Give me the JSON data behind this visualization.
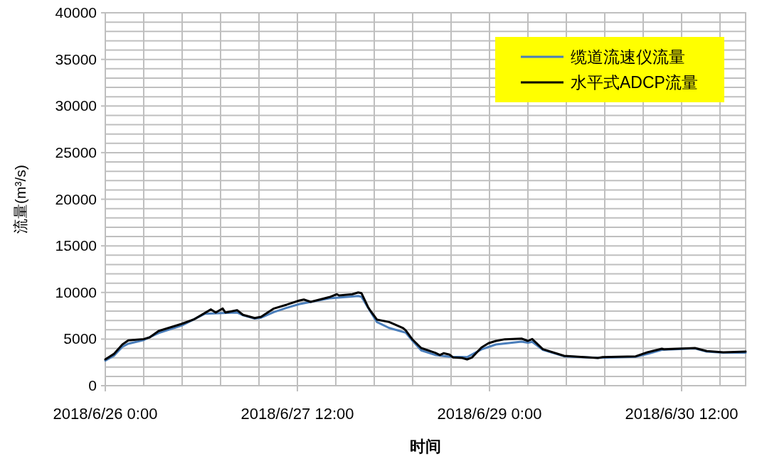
{
  "chart_data": {
    "type": "line",
    "xlabel": "时间",
    "ylabel": "流量(m³/s)",
    "legend": "top right",
    "grid": true,
    "line_style": "solid",
    "marker": "none",
    "xlim": [
      "2018-06-26T00:00",
      "2018-07-01T00:00"
    ],
    "xticks": [
      {
        "value": "2018-06-26T00:00",
        "label": "2018/6/26 0:00"
      },
      {
        "value": "2018-06-26T07:12",
        "label": null
      },
      {
        "value": "2018-06-26T14:24",
        "label": null
      },
      {
        "value": "2018-06-26T21:36",
        "label": null
      },
      {
        "value": "2018-06-27T04:48",
        "label": null
      },
      {
        "value": "2018-06-27T12:00",
        "label": "2018/6/27 12:00"
      },
      {
        "value": "2018-06-27T19:12",
        "label": null
      },
      {
        "value": "2018-06-28T02:24",
        "label": null
      },
      {
        "value": "2018-06-28T09:36",
        "label": null
      },
      {
        "value": "2018-06-28T16:48",
        "label": null
      },
      {
        "value": "2018-06-29T00:00",
        "label": "2018/6/29 0:00"
      },
      {
        "value": "2018-06-29T07:12",
        "label": null
      },
      {
        "value": "2018-06-29T14:24",
        "label": null
      },
      {
        "value": "2018-06-29T21:36",
        "label": null
      },
      {
        "value": "2018-06-30T04:48",
        "label": null
      },
      {
        "value": "2018-06-30T12:00",
        "label": "2018/6/30 12:00"
      },
      {
        "value": "2018-06-30T19:12",
        "label": null
      }
    ],
    "ylim": [
      0,
      40000
    ],
    "yticks": [
      0,
      {
        "value": 1000,
        "label": null
      },
      {
        "value": 2000,
        "label": null
      },
      {
        "value": 3000,
        "label": null
      },
      {
        "value": 4000,
        "label": null
      },
      5000,
      {
        "value": 6000,
        "label": null
      },
      {
        "value": 7000,
        "label": null
      },
      {
        "value": 8000,
        "label": null
      },
      {
        "value": 9000,
        "label": null
      },
      10000,
      {
        "value": 11000,
        "label": null
      },
      {
        "value": 12000,
        "label": null
      },
      {
        "value": 13000,
        "label": null
      },
      {
        "value": 14000,
        "label": null
      },
      15000,
      {
        "value": 16000,
        "label": null
      },
      {
        "value": 17000,
        "label": null
      },
      {
        "value": 18000,
        "label": null
      },
      {
        "value": 19000,
        "label": null
      },
      20000,
      {
        "value": 21000,
        "label": null
      },
      {
        "value": 22000,
        "label": null
      },
      {
        "value": 23000,
        "label": null
      },
      {
        "value": 24000,
        "label": null
      },
      25000,
      {
        "value": 26000,
        "label": null
      },
      {
        "value": 27000,
        "label": null
      },
      {
        "value": 28000,
        "label": null
      },
      {
        "value": 29000,
        "label": null
      },
      30000,
      {
        "value": 31000,
        "label": null
      },
      {
        "value": 32000,
        "label": null
      },
      {
        "value": 33000,
        "label": null
      },
      {
        "value": 34000,
        "label": null
      },
      35000,
      {
        "value": 36000,
        "label": null
      },
      {
        "value": 37000,
        "label": null
      },
      {
        "value": 38000,
        "label": null
      },
      {
        "value": 39000,
        "label": null
      },
      40000
    ],
    "series": [
      {
        "name": "缆道流速仪流量",
        "color": "#4a7ebb",
        "x": [
          "2018-06-26T00:00",
          "2018-06-26T01:36",
          "2018-06-26T03:12",
          "2018-06-26T04:18",
          "2018-06-26T07:12",
          "2018-06-26T10:00",
          "2018-06-26T14:18",
          "2018-06-26T18:42",
          "2018-06-26T22:00",
          "2018-06-27T00:42",
          "2018-06-27T01:48",
          "2018-06-27T04:00",
          "2018-06-27T05:12",
          "2018-06-27T07:36",
          "2018-06-27T10:00",
          "2018-06-27T12:18",
          "2018-06-27T18:00",
          "2018-06-27T23:24",
          "2018-06-28T00:00",
          "2018-06-28T01:12",
          "2018-06-28T02:54",
          "2018-06-28T05:12",
          "2018-06-28T08:18",
          "2018-06-28T09:36",
          "2018-06-28T11:12",
          "2018-06-28T13:48",
          "2018-06-28T16:30",
          "2018-06-28T19:48",
          "2018-06-28T22:30",
          "2018-06-29T01:12",
          "2018-06-29T06:00",
          "2018-06-29T07:12",
          "2018-06-29T08:00",
          "2018-06-29T10:00",
          "2018-06-29T14:00",
          "2018-06-29T20:18",
          "2018-06-30T03:24",
          "2018-06-30T05:36",
          "2018-06-30T08:18",
          "2018-06-30T14:30",
          "2018-06-30T16:42",
          "2018-06-30T19:48",
          "2018-07-01T00:00"
        ],
        "values": [
          2700,
          3200,
          4170,
          4500,
          4900,
          5650,
          6450,
          7720,
          7800,
          7850,
          7550,
          7200,
          7300,
          7900,
          8350,
          8740,
          9370,
          9620,
          9550,
          8400,
          6830,
          6190,
          5690,
          4800,
          3790,
          3300,
          3100,
          3070,
          3900,
          4420,
          4720,
          4600,
          4700,
          3850,
          3150,
          3000,
          3100,
          3400,
          3850,
          4000,
          3650,
          3550,
          3550
        ]
      },
      {
        "name": "水平式ADCP流量",
        "color": "#000000",
        "x": [
          "2018-06-26T00:00",
          "2018-06-26T01:36",
          "2018-06-26T03:12",
          "2018-06-26T04:18",
          "2018-06-26T07:12",
          "2018-06-26T08:18",
          "2018-06-26T10:00",
          "2018-06-26T14:18",
          "2018-06-26T16:42",
          "2018-06-26T19:48",
          "2018-06-26T20:42",
          "2018-06-26T22:00",
          "2018-06-26T22:30",
          "2018-06-27T00:42",
          "2018-06-27T01:48",
          "2018-06-27T04:00",
          "2018-06-27T05:12",
          "2018-06-27T07:36",
          "2018-06-27T10:00",
          "2018-06-27T12:18",
          "2018-06-27T13:12",
          "2018-06-27T14:30",
          "2018-06-27T18:00",
          "2018-06-27T19:24",
          "2018-06-27T19:48",
          "2018-06-27T22:18",
          "2018-06-27T23:24",
          "2018-06-28T00:00",
          "2018-06-28T01:12",
          "2018-06-28T01:36",
          "2018-06-28T02:54",
          "2018-06-28T05:12",
          "2018-06-28T07:48",
          "2018-06-28T08:18",
          "2018-06-28T09:36",
          "2018-06-28T11:12",
          "2018-06-28T13:48",
          "2018-06-28T14:42",
          "2018-06-28T15:24",
          "2018-06-28T16:30",
          "2018-06-28T17:12",
          "2018-06-28T18:54",
          "2018-06-28T19:48",
          "2018-06-28T20:42",
          "2018-06-28T22:30",
          "2018-06-28T23:48",
          "2018-06-29T01:12",
          "2018-06-29T02:54",
          "2018-06-29T06:00",
          "2018-06-29T07:12",
          "2018-06-29T08:00",
          "2018-06-29T10:00",
          "2018-06-29T14:00",
          "2018-06-29T20:18",
          "2018-06-29T21:12",
          "2018-06-30T03:24",
          "2018-06-30T05:36",
          "2018-06-30T08:18",
          "2018-06-30T08:42",
          "2018-06-30T14:30",
          "2018-06-30T16:42",
          "2018-06-30T19:48",
          "2018-07-01T00:00"
        ],
        "values": [
          2820,
          3400,
          4420,
          4850,
          5000,
          5180,
          5870,
          6630,
          7140,
          8180,
          7850,
          8280,
          7850,
          8100,
          7600,
          7260,
          7390,
          8280,
          8690,
          9120,
          9240,
          8990,
          9500,
          9810,
          9680,
          9810,
          10000,
          9930,
          8480,
          8100,
          7090,
          6830,
          6190,
          5940,
          4930,
          4040,
          3530,
          3280,
          3480,
          3330,
          3020,
          2970,
          2820,
          3020,
          4090,
          4550,
          4800,
          4980,
          5050,
          4800,
          5000,
          3910,
          3200,
          2970,
          3070,
          3150,
          3580,
          3960,
          3910,
          4040,
          3710,
          3580,
          3660
        ]
      }
    ]
  }
}
